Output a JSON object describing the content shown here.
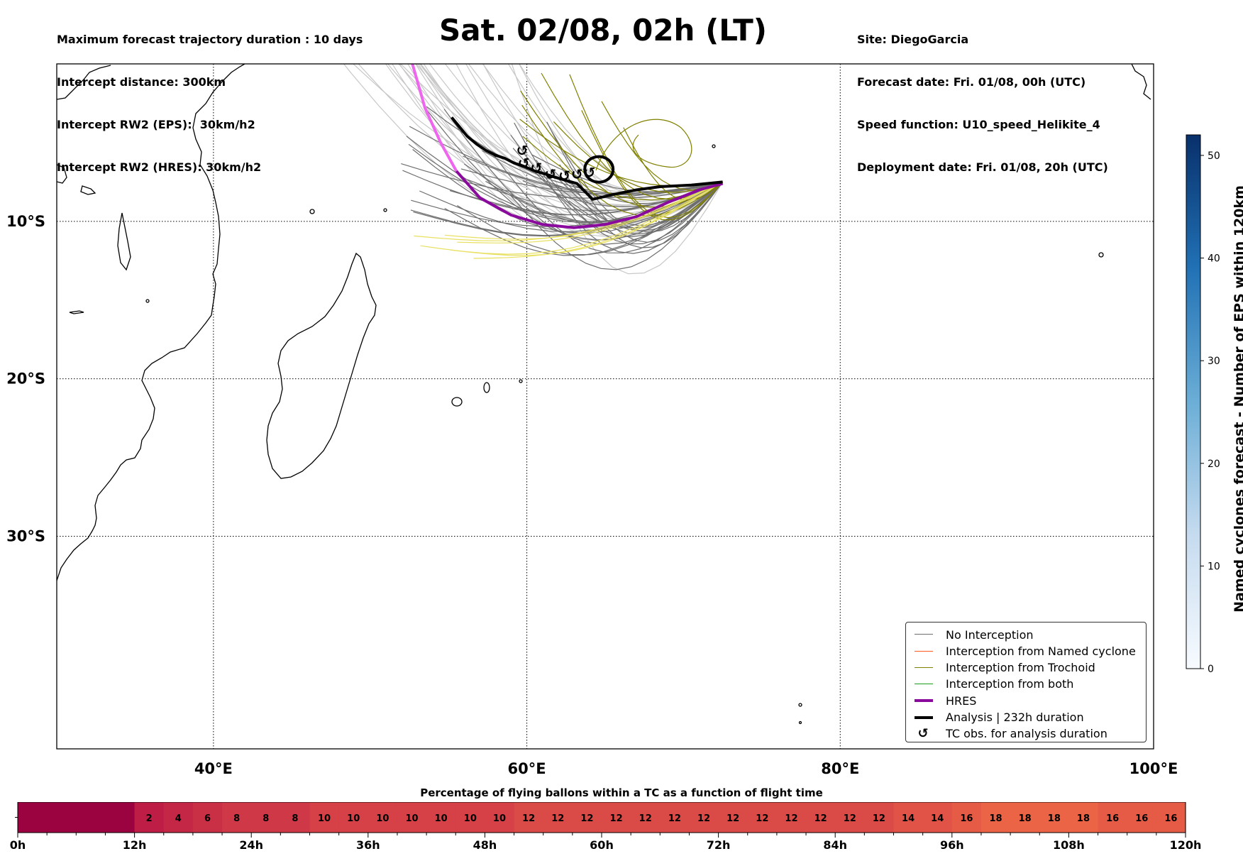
{
  "header_left": {
    "line1": "Maximum forecast trajectory duration : 10 days",
    "line2": "Intercept distance: 300km",
    "line3": "Intercept RW2 (EPS):  30km/h2",
    "line4": "Intercept RW2 (HRES): 30km/h2"
  },
  "title": "Sat. 02/08, 02h (LT)",
  "header_right": {
    "site": "Site: DiegoGarcia",
    "forecast_date": "Forecast date: Fri. 01/08, 00h (UTC)",
    "speed_function": "Speed function: U10_speed_Helikite_4",
    "deployment_date": "Deployment date: Fri. 01/08, 20h (UTC)"
  },
  "map": {
    "lon_range": [
      30,
      100
    ],
    "lat_range": [
      -43.5,
      0.0
    ],
    "lon_ticks": [
      {
        "value": 40,
        "label": "40°E"
      },
      {
        "value": 60,
        "label": "60°E"
      },
      {
        "value": 80,
        "label": "80°E"
      },
      {
        "value": 100,
        "label": "100°E"
      }
    ],
    "lat_ticks": [
      {
        "value": -10,
        "label": "10°S"
      },
      {
        "value": -20,
        "label": "20°S"
      },
      {
        "value": -30,
        "label": "30°S"
      }
    ],
    "gridlines": "dotted",
    "colors": {
      "no_interception": "#6e6e6e",
      "named_cyclone": "#ff5a1e",
      "trochoid": "#808000",
      "both": "#1a9e1a",
      "hres": "#8b0a9e",
      "hres_start": "#ee66ee",
      "analysis": "#000000",
      "light_tracks": "#c8c8c8",
      "yellow_tracks": "#e8e060"
    }
  },
  "analysis_track": {
    "lon": [
      72.5,
      70.5,
      68.5,
      67.0,
      65.5,
      64.2,
      63.8,
      63.2,
      62.5,
      61.8,
      61.2,
      60.5,
      59.8,
      59.2,
      58.6,
      58.0,
      57.4,
      56.8,
      56.2,
      55.7,
      55.2
    ],
    "lat": [
      -7.5,
      -7.7,
      -7.8,
      -8.0,
      -8.3,
      -8.6,
      -8.2,
      -7.6,
      -7.4,
      -7.2,
      -7.0,
      -6.8,
      -6.5,
      -6.3,
      -6.0,
      -5.8,
      -5.5,
      -5.1,
      -4.6,
      -4.0,
      -3.4
    ]
  },
  "hres_track": {
    "lon": [
      72.5,
      71.0,
      69.0,
      67.0,
      65.0,
      63.0,
      61.0,
      59.0,
      57.0,
      55.5,
      54.5,
      53.5,
      52.7
    ],
    "lat": [
      -7.6,
      -8.0,
      -8.8,
      -9.7,
      -10.2,
      -10.4,
      -10.2,
      -9.6,
      -8.5,
      -6.8,
      -5.0,
      -2.8,
      0.0
    ]
  },
  "tc_obs_points": [
    {
      "lon": 59.7,
      "lat": -5.5
    },
    {
      "lon": 59.8,
      "lat": -6.3
    },
    {
      "lon": 60.6,
      "lat": -6.6
    },
    {
      "lon": 61.5,
      "lat": -7.0
    },
    {
      "lon": 62.4,
      "lat": -7.1
    },
    {
      "lon": 63.2,
      "lat": -7.0
    },
    {
      "lon": 64.0,
      "lat": -6.9
    }
  ],
  "colorbar": {
    "label": "Named cyclones forecast - Number of EPS within 120km",
    "min": 0,
    "max": 52,
    "ticks": [
      0,
      10,
      20,
      30,
      40,
      50
    ],
    "colormap": "Blues"
  },
  "legend": {
    "items": [
      {
        "label": "No Interception",
        "color": "#6e6e6e",
        "style": "line",
        "width": 1.2
      },
      {
        "label": "Interception from Named cyclone",
        "color": "#ff5a1e",
        "style": "line",
        "width": 1.2
      },
      {
        "label": "Interception from Trochoid",
        "color": "#808000",
        "style": "line",
        "width": 1.2
      },
      {
        "label": "Interception from both",
        "color": "#1a9e1a",
        "style": "line",
        "width": 1.2
      },
      {
        "label": "HRES",
        "color": "#8b0a9e",
        "style": "line",
        "width": 4
      },
      {
        "label": "Analysis | 232h duration",
        "color": "#000000",
        "style": "line",
        "width": 4
      },
      {
        "label": "TC obs. for analysis duration",
        "color": "#000000",
        "style": "symbol",
        "symbol": "↺"
      }
    ]
  },
  "bottom_bar": {
    "title": "Percentage of flying ballons within a TC as a function of flight time",
    "hours_per_segment": 3,
    "max_hours": 120,
    "segments": [
      {
        "value": null
      },
      {
        "value": null
      },
      {
        "value": null
      },
      {
        "value": null
      },
      {
        "value": 2
      },
      {
        "value": 4
      },
      {
        "value": 6
      },
      {
        "value": 8
      },
      {
        "value": 8
      },
      {
        "value": 8
      },
      {
        "value": 10
      },
      {
        "value": 10
      },
      {
        "value": 10
      },
      {
        "value": 10
      },
      {
        "value": 10
      },
      {
        "value": 10
      },
      {
        "value": 10
      },
      {
        "value": 12
      },
      {
        "value": 12
      },
      {
        "value": 12
      },
      {
        "value": 12
      },
      {
        "value": 12
      },
      {
        "value": 12
      },
      {
        "value": 12
      },
      {
        "value": 12
      },
      {
        "value": 12
      },
      {
        "value": 12
      },
      {
        "value": 12
      },
      {
        "value": 12
      },
      {
        "value": 12
      },
      {
        "value": 14
      },
      {
        "value": 14
      },
      {
        "value": 16
      },
      {
        "value": 18
      },
      {
        "value": 18
      },
      {
        "value": 18
      },
      {
        "value": 18
      },
      {
        "value": 16
      },
      {
        "value": 16
      },
      {
        "value": 16
      }
    ],
    "tick_labels": [
      "0h",
      "12h",
      "24h",
      "36h",
      "48h",
      "60h",
      "72h",
      "84h",
      "96h",
      "108h",
      "120h"
    ]
  }
}
